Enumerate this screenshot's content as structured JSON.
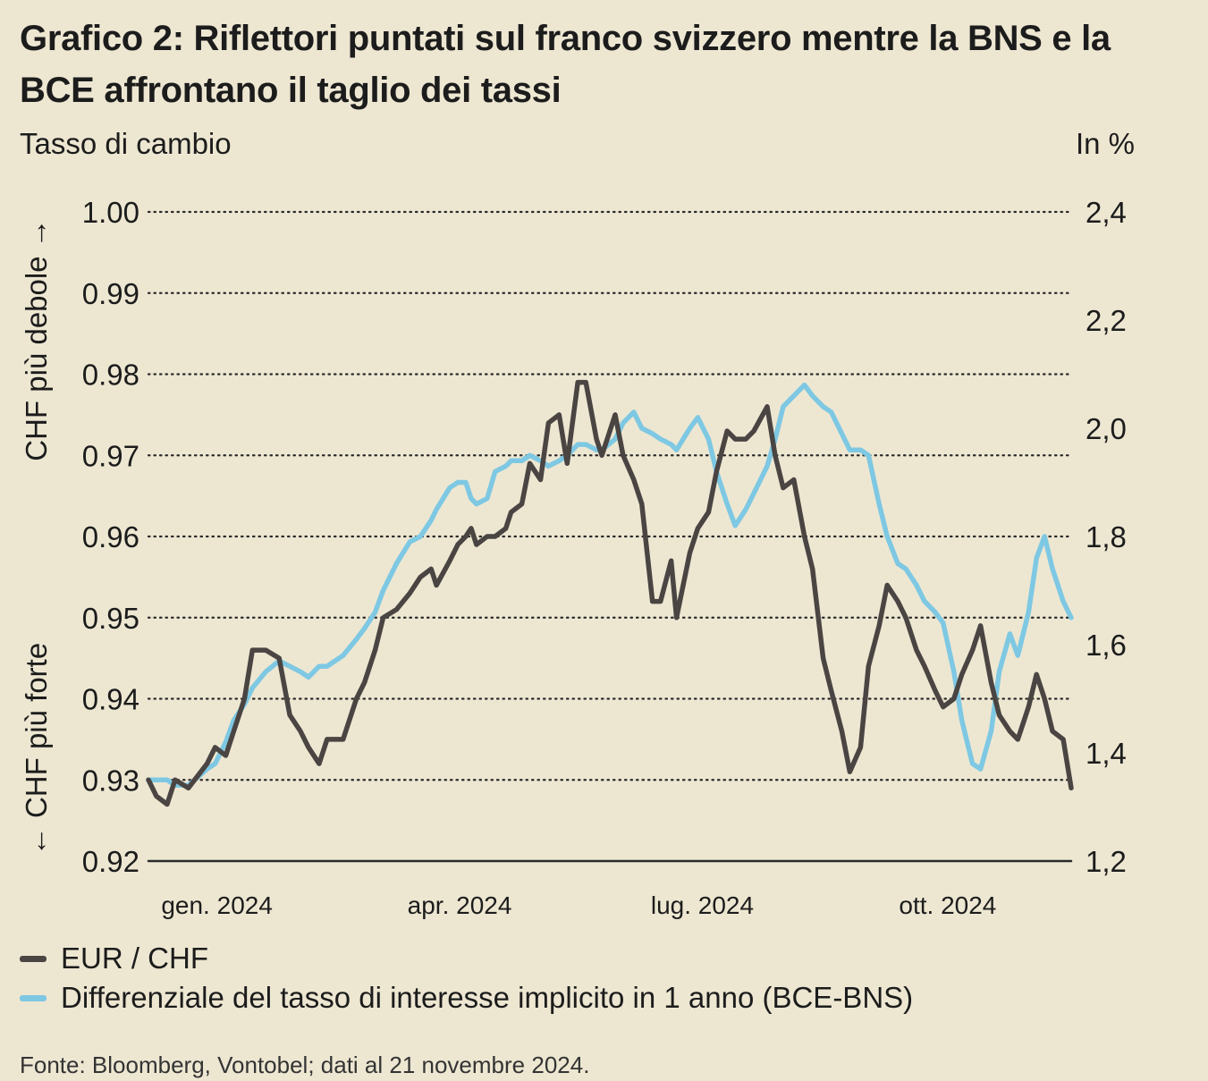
{
  "title": "Grafico 2: Riflettori puntati sul franco svizzero mentre la BNS e la BCE affrontano il taglio dei tassi",
  "left_unit": "Tasso di cambio",
  "right_unit": "In %",
  "left_axis_top_label": "CHF più debole →",
  "left_axis_bottom_label": "← CHF più forte",
  "source": "Fonte: Bloomberg, Vontobel; dati al 21 novembre 2024.",
  "colors": {
    "eurchf": "#4a4542",
    "differential": "#7ec8e3",
    "background": "#ede7d2",
    "grid": "#2a2a2a"
  },
  "chart_data": {
    "type": "line",
    "grid": "horizontal dotted",
    "legend_position": "bottom-left",
    "x_ticks": [
      {
        "label": "gen. 2024",
        "date": "2024-01-01"
      },
      {
        "label": "apr. 2024",
        "date": "2024-04-01"
      },
      {
        "label": "lug. 2024",
        "date": "2024-07-01"
      },
      {
        "label": "ott. 2024",
        "date": "2024-10-01"
      }
    ],
    "xlim": [
      "2023-12-11",
      "2024-11-21"
    ],
    "y_left": {
      "lim": [
        0.92,
        1.0
      ],
      "ticks": [
        "0.92",
        "0.93",
        "0.94",
        "0.95",
        "0.96",
        "0.97",
        "0.98",
        "0.99",
        "1.00"
      ]
    },
    "y_right": {
      "lim": [
        1.2,
        2.4
      ],
      "ticks": [
        "1,2",
        "1,4",
        "1,6",
        "1,8",
        "2,0",
        "2,2",
        "2,4"
      ]
    },
    "series": [
      {
        "name": "EUR / CHF",
        "axis": "left",
        "points": [
          [
            "2023-12-11",
            0.93
          ],
          [
            "2023-12-14",
            0.928
          ],
          [
            "2023-12-18",
            0.927
          ],
          [
            "2023-12-21",
            0.93
          ],
          [
            "2023-12-26",
            0.929
          ],
          [
            "2024-01-02",
            0.932
          ],
          [
            "2024-01-05",
            0.934
          ],
          [
            "2024-01-09",
            0.933
          ],
          [
            "2024-01-12",
            0.936
          ],
          [
            "2024-01-16",
            0.94
          ],
          [
            "2024-01-19",
            0.946
          ],
          [
            "2024-01-24",
            0.946
          ],
          [
            "2024-01-29",
            0.945
          ],
          [
            "2024-02-02",
            0.938
          ],
          [
            "2024-02-06",
            0.936
          ],
          [
            "2024-02-09",
            0.934
          ],
          [
            "2024-02-13",
            0.932
          ],
          [
            "2024-02-16",
            0.935
          ],
          [
            "2024-02-22",
            0.935
          ],
          [
            "2024-02-27",
            0.94
          ],
          [
            "2024-03-01",
            0.942
          ],
          [
            "2024-03-05",
            0.946
          ],
          [
            "2024-03-08",
            0.95
          ],
          [
            "2024-03-13",
            0.951
          ],
          [
            "2024-03-18",
            0.953
          ],
          [
            "2024-03-22",
            0.955
          ],
          [
            "2024-03-26",
            0.956
          ],
          [
            "2024-03-28",
            0.954
          ],
          [
            "2024-04-02",
            0.957
          ],
          [
            "2024-04-05",
            0.959
          ],
          [
            "2024-04-08",
            0.96
          ],
          [
            "2024-04-10",
            0.961
          ],
          [
            "2024-04-12",
            0.959
          ],
          [
            "2024-04-16",
            0.96
          ],
          [
            "2024-04-19",
            0.96
          ],
          [
            "2024-04-23",
            0.961
          ],
          [
            "2024-04-25",
            0.963
          ],
          [
            "2024-04-29",
            0.964
          ],
          [
            "2024-05-02",
            0.969
          ],
          [
            "2024-05-06",
            0.967
          ],
          [
            "2024-05-09",
            0.974
          ],
          [
            "2024-05-13",
            0.975
          ],
          [
            "2024-05-16",
            0.969
          ],
          [
            "2024-05-20",
            0.979
          ],
          [
            "2024-05-23",
            0.979
          ],
          [
            "2024-05-27",
            0.972
          ],
          [
            "2024-05-29",
            0.97
          ],
          [
            "2024-06-03",
            0.975
          ],
          [
            "2024-06-06",
            0.97
          ],
          [
            "2024-06-10",
            0.967
          ],
          [
            "2024-06-13",
            0.964
          ],
          [
            "2024-06-17",
            0.952
          ],
          [
            "2024-06-20",
            0.952
          ],
          [
            "2024-06-24",
            0.957
          ],
          [
            "2024-06-26",
            0.95
          ],
          [
            "2024-07-01",
            0.958
          ],
          [
            "2024-07-04",
            0.961
          ],
          [
            "2024-07-08",
            0.963
          ],
          [
            "2024-07-11",
            0.968
          ],
          [
            "2024-07-15",
            0.973
          ],
          [
            "2024-07-18",
            0.972
          ],
          [
            "2024-07-22",
            0.972
          ],
          [
            "2024-07-25",
            0.973
          ],
          [
            "2024-07-30",
            0.976
          ],
          [
            "2024-08-02",
            0.97
          ],
          [
            "2024-08-05",
            0.966
          ],
          [
            "2024-08-09",
            0.967
          ],
          [
            "2024-08-13",
            0.96
          ],
          [
            "2024-08-16",
            0.956
          ],
          [
            "2024-08-20",
            0.945
          ],
          [
            "2024-08-23",
            0.941
          ],
          [
            "2024-08-27",
            0.936
          ],
          [
            "2024-08-30",
            0.931
          ],
          [
            "2024-09-03",
            0.934
          ],
          [
            "2024-09-06",
            0.944
          ],
          [
            "2024-09-10",
            0.949
          ],
          [
            "2024-09-13",
            0.954
          ],
          [
            "2024-09-17",
            0.952
          ],
          [
            "2024-09-20",
            0.95
          ],
          [
            "2024-09-24",
            0.946
          ],
          [
            "2024-09-27",
            0.944
          ],
          [
            "2024-10-01",
            0.941
          ],
          [
            "2024-10-04",
            0.939
          ],
          [
            "2024-10-08",
            0.94
          ],
          [
            "2024-10-11",
            0.943
          ],
          [
            "2024-10-15",
            0.946
          ],
          [
            "2024-10-18",
            0.949
          ],
          [
            "2024-10-22",
            0.942
          ],
          [
            "2024-10-25",
            0.938
          ],
          [
            "2024-10-29",
            0.936
          ],
          [
            "2024-11-01",
            0.935
          ],
          [
            "2024-11-05",
            0.939
          ],
          [
            "2024-11-08",
            0.943
          ],
          [
            "2024-11-11",
            0.94
          ],
          [
            "2024-11-14",
            0.936
          ],
          [
            "2024-11-18",
            0.935
          ],
          [
            "2024-11-21",
            0.929
          ]
        ]
      },
      {
        "name": "Differenziale del tasso di interesse implicito in 1 anno (BCE-BNS)",
        "axis": "right",
        "points": [
          [
            "2023-12-11",
            1.35
          ],
          [
            "2023-12-14",
            1.35
          ],
          [
            "2023-12-18",
            1.35
          ],
          [
            "2023-12-21",
            1.34
          ],
          [
            "2023-12-26",
            1.34
          ],
          [
            "2024-01-02",
            1.37
          ],
          [
            "2024-01-05",
            1.38
          ],
          [
            "2024-01-09",
            1.42
          ],
          [
            "2024-01-12",
            1.46
          ],
          [
            "2024-01-16",
            1.49
          ],
          [
            "2024-01-19",
            1.52
          ],
          [
            "2024-01-24",
            1.55
          ],
          [
            "2024-01-29",
            1.57
          ],
          [
            "2024-02-02",
            1.56
          ],
          [
            "2024-02-06",
            1.55
          ],
          [
            "2024-02-09",
            1.54
          ],
          [
            "2024-02-13",
            1.56
          ],
          [
            "2024-02-16",
            1.56
          ],
          [
            "2024-02-22",
            1.58
          ],
          [
            "2024-02-27",
            1.61
          ],
          [
            "2024-03-01",
            1.63
          ],
          [
            "2024-03-05",
            1.66
          ],
          [
            "2024-03-08",
            1.7
          ],
          [
            "2024-03-13",
            1.75
          ],
          [
            "2024-03-18",
            1.79
          ],
          [
            "2024-03-22",
            1.8
          ],
          [
            "2024-03-26",
            1.83
          ],
          [
            "2024-03-28",
            1.85
          ],
          [
            "2024-04-02",
            1.89
          ],
          [
            "2024-04-05",
            1.9
          ],
          [
            "2024-04-08",
            1.9
          ],
          [
            "2024-04-10",
            1.87
          ],
          [
            "2024-04-12",
            1.86
          ],
          [
            "2024-04-16",
            1.87
          ],
          [
            "2024-04-19",
            1.92
          ],
          [
            "2024-04-23",
            1.93
          ],
          [
            "2024-04-25",
            1.94
          ],
          [
            "2024-04-29",
            1.94
          ],
          [
            "2024-05-02",
            1.95
          ],
          [
            "2024-05-06",
            1.94
          ],
          [
            "2024-05-09",
            1.93
          ],
          [
            "2024-05-13",
            1.94
          ],
          [
            "2024-05-16",
            1.95
          ],
          [
            "2024-05-20",
            1.97
          ],
          [
            "2024-05-23",
            1.97
          ],
          [
            "2024-05-27",
            1.96
          ],
          [
            "2024-05-29",
            1.96
          ],
          [
            "2024-06-03",
            1.98
          ],
          [
            "2024-06-06",
            2.01
          ],
          [
            "2024-06-10",
            2.03
          ],
          [
            "2024-06-13",
            2.0
          ],
          [
            "2024-06-17",
            1.99
          ],
          [
            "2024-06-20",
            1.98
          ],
          [
            "2024-06-24",
            1.97
          ],
          [
            "2024-06-26",
            1.96
          ],
          [
            "2024-07-01",
            2.0
          ],
          [
            "2024-07-04",
            2.02
          ],
          [
            "2024-07-08",
            1.98
          ],
          [
            "2024-07-11",
            1.92
          ],
          [
            "2024-07-15",
            1.86
          ],
          [
            "2024-07-18",
            1.82
          ],
          [
            "2024-07-22",
            1.85
          ],
          [
            "2024-07-25",
            1.88
          ],
          [
            "2024-07-30",
            1.93
          ],
          [
            "2024-08-02",
            1.98
          ],
          [
            "2024-08-05",
            2.04
          ],
          [
            "2024-08-09",
            2.06
          ],
          [
            "2024-08-13",
            2.08
          ],
          [
            "2024-08-16",
            2.06
          ],
          [
            "2024-08-20",
            2.04
          ],
          [
            "2024-08-23",
            2.03
          ],
          [
            "2024-08-27",
            1.99
          ],
          [
            "2024-08-30",
            1.96
          ],
          [
            "2024-09-03",
            1.96
          ],
          [
            "2024-09-06",
            1.95
          ],
          [
            "2024-09-10",
            1.86
          ],
          [
            "2024-09-13",
            1.8
          ],
          [
            "2024-09-17",
            1.75
          ],
          [
            "2024-09-20",
            1.74
          ],
          [
            "2024-09-24",
            1.71
          ],
          [
            "2024-09-27",
            1.68
          ],
          [
            "2024-10-01",
            1.66
          ],
          [
            "2024-10-04",
            1.64
          ],
          [
            "2024-10-08",
            1.55
          ],
          [
            "2024-10-11",
            1.46
          ],
          [
            "2024-10-15",
            1.38
          ],
          [
            "2024-10-18",
            1.37
          ],
          [
            "2024-10-22",
            1.44
          ],
          [
            "2024-10-25",
            1.55
          ],
          [
            "2024-10-29",
            1.62
          ],
          [
            "2024-11-01",
            1.58
          ],
          [
            "2024-11-05",
            1.66
          ],
          [
            "2024-11-08",
            1.76
          ],
          [
            "2024-11-11",
            1.8
          ],
          [
            "2024-11-14",
            1.74
          ],
          [
            "2024-11-18",
            1.68
          ],
          [
            "2024-11-21",
            1.65
          ]
        ]
      }
    ]
  }
}
